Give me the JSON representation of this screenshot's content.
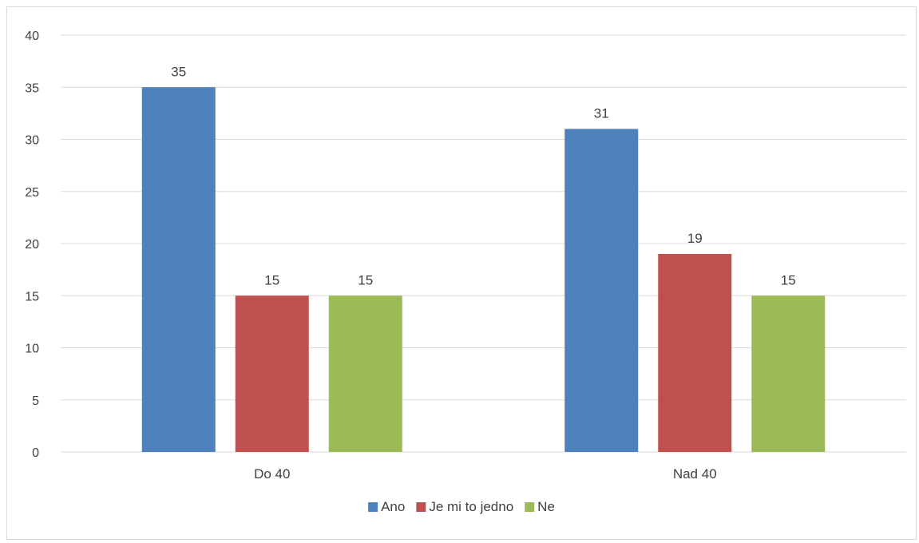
{
  "chart_data": {
    "type": "bar",
    "categories": [
      "Do 40",
      "Nad 40"
    ],
    "series": [
      {
        "name": "Ano",
        "values": [
          35,
          31
        ],
        "color": "#4f81bd"
      },
      {
        "name": "Je mi to jedno",
        "values": [
          15,
          19
        ],
        "color": "#c0504d"
      },
      {
        "name": "Ne",
        "values": [
          15,
          15
        ],
        "color": "#9bbb59"
      }
    ],
    "title": "",
    "xlabel": "",
    "ylabel": "",
    "ylim": [
      0,
      40
    ],
    "yticks": [
      0,
      5,
      10,
      15,
      20,
      25,
      30,
      35,
      40
    ],
    "grid": true,
    "data_labels": true,
    "legend_position": "bottom"
  },
  "colors": {
    "grid": "#d9d9d9",
    "text": "#404040",
    "border": "#d9d9d9"
  }
}
